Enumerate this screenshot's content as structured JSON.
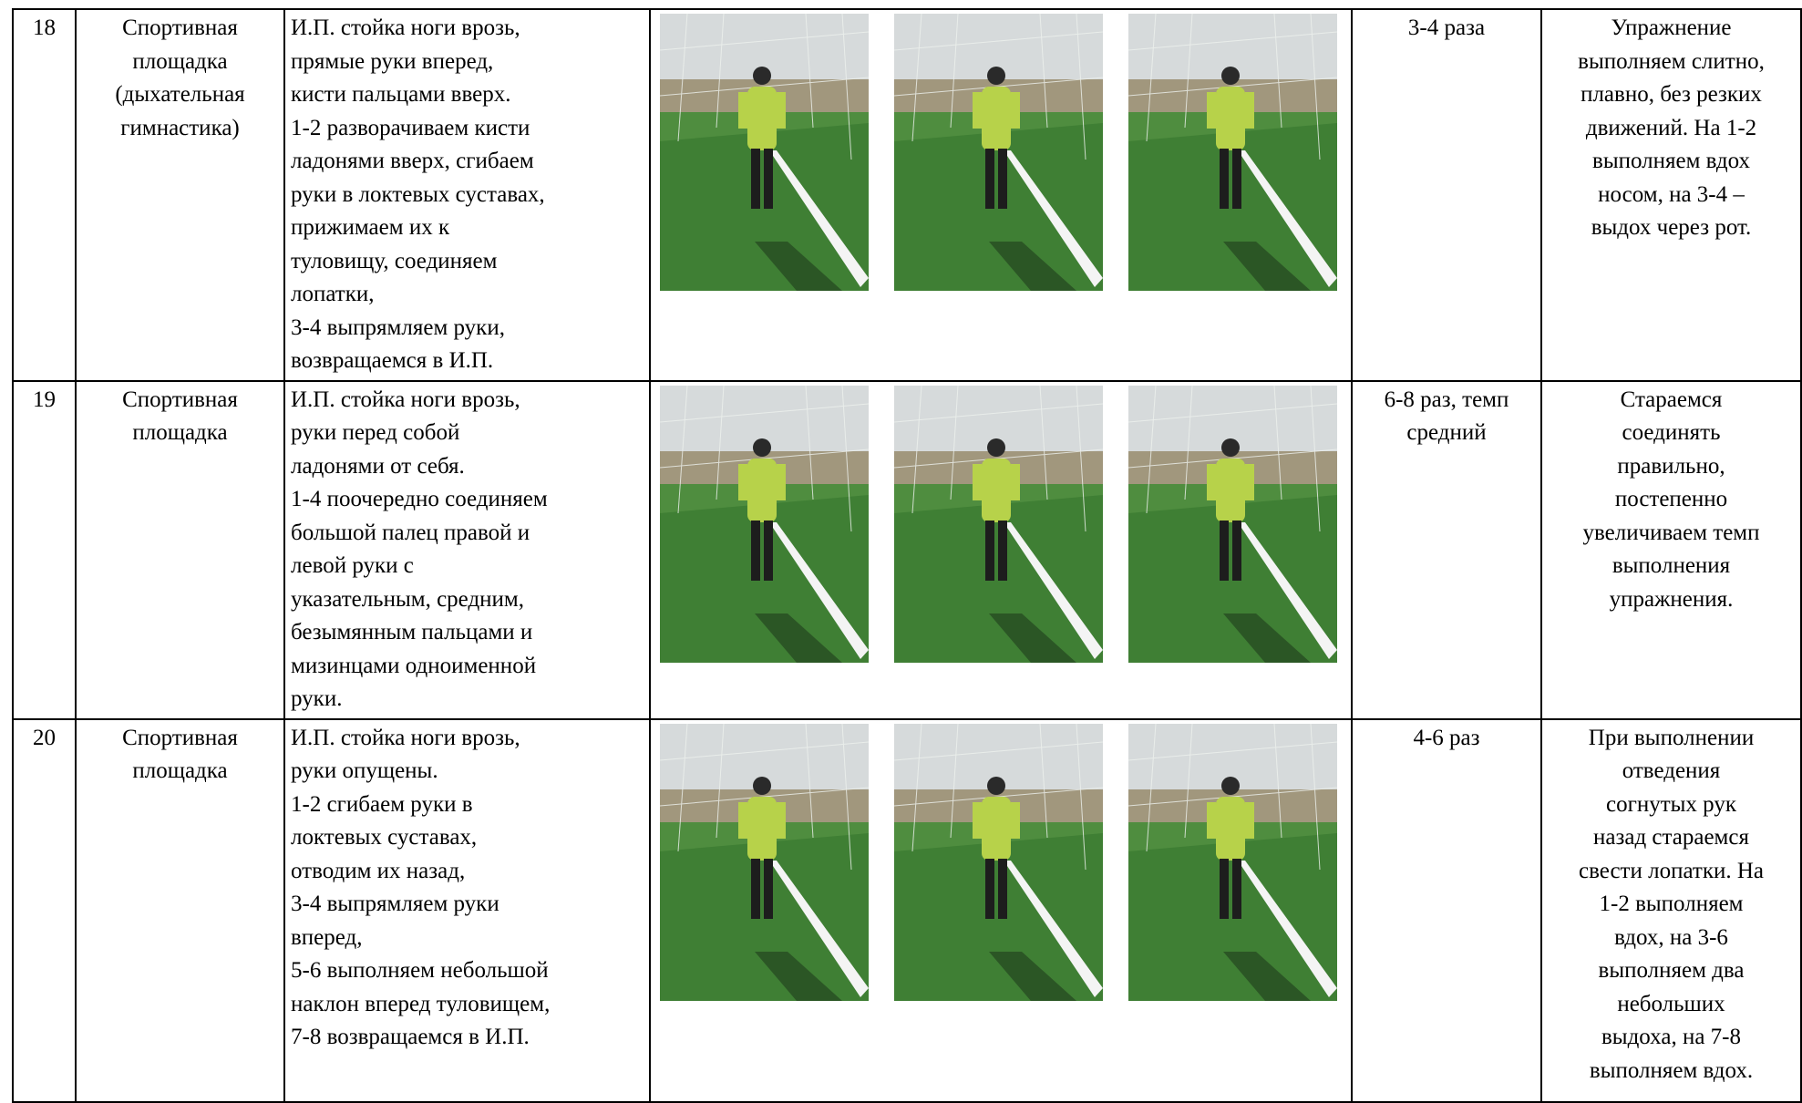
{
  "table": {
    "rows": [
      {
        "number": "18",
        "place": [
          "Спортивная",
          "площадка",
          "(дыхательная",
          "гимнастика)"
        ],
        "description": [
          "И.П. стойка ноги врозь,",
          "прямые руки вперед,",
          "кисти пальцами вверх.",
          "1-2 разворачиваем кисти",
          "ладонями вверх, сгибаем",
          "руки в локтевых суставах,",
          "прижимаем их к",
          "туловищу, соединяем",
          "лопатки,",
          "3-4 выпрямляем руки,",
          "возвращаемся в И.П."
        ],
        "dosage": [
          "3-4 раза"
        ],
        "notes": [
          "Упражнение",
          "выполняем слитно,",
          "плавно, без резких",
          "движений. На 1-2",
          "выполняем вдох",
          "носом, на 3-4 –",
          "выдох через рот."
        ]
      },
      {
        "number": "19",
        "place": [
          "Спортивная",
          "площадка"
        ],
        "description": [
          "И.П. стойка ноги врозь,",
          "руки перед собой",
          "ладонями от себя.",
          "1-4 поочередно соединяем",
          "большой палец правой и",
          "левой руки с",
          "указательным, средним,",
          "безымянным пальцами и",
          "мизинцами одноименной",
          "руки."
        ],
        "dosage": [
          "6-8 раз, темп",
          "средний"
        ],
        "notes": [
          "Стараемся",
          "соединять",
          "правильно,",
          "постепенно",
          "увеличиваем темп",
          "выполнения",
          "упражнения."
        ]
      },
      {
        "number": "20",
        "place": [
          "Спортивная",
          "площадка"
        ],
        "description": [
          "И.П. стойка ноги врозь,",
          "руки опущены.",
          "1-2 сгибаем руки в",
          "локтевых суставах,",
          "отводим их назад,",
          "3-4 выпрямляем руки",
          "вперед,",
          "5-6 выполняем небольшой",
          "наклон вперед туловищем,",
          "7-8 возвращаемся в И.П."
        ],
        "dosage": [
          "4-6 раз"
        ],
        "notes": [
          "При выполнении",
          "отведения",
          "согнутых рук",
          "назад стараемся",
          "свести лопатки. На",
          "1-2 выполняем",
          "вдох, на 3-6",
          "выполняем два",
          "небольших",
          "выдоха, на 7-8",
          "выполняем вдох."
        ]
      }
    ]
  }
}
